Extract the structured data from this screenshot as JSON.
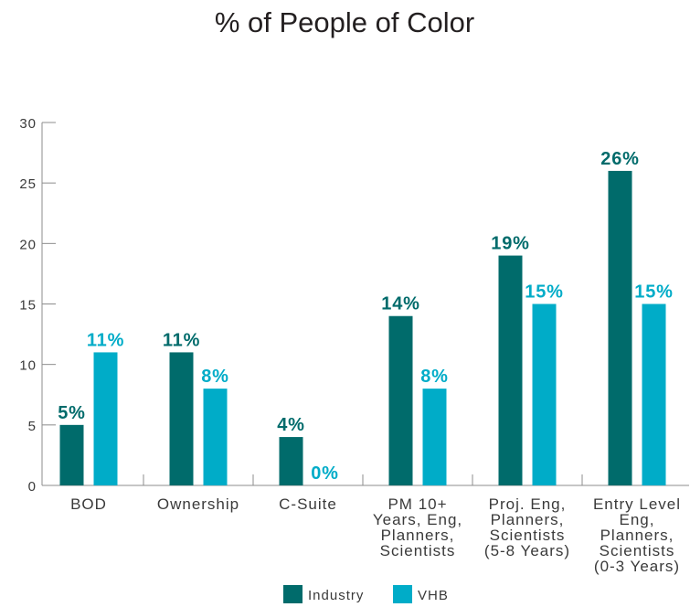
{
  "chart_data": {
    "type": "bar",
    "title": "% of People of Color",
    "categories": [
      [
        "BOD"
      ],
      [
        "Ownership"
      ],
      [
        "C-Suite"
      ],
      [
        "PM 10+",
        "Years, Eng,",
        "Planners,",
        "Scientists"
      ],
      [
        "Proj. Eng,",
        "Planners,",
        "Scientists",
        "(5-8 Years)"
      ],
      [
        "Entry Level",
        "Eng,",
        "Planners,",
        "Scientists",
        "(0-3 Years)"
      ]
    ],
    "series": [
      {
        "name": "Industry",
        "values": [
          5,
          11,
          4,
          14,
          19,
          26
        ],
        "labels": [
          "5%",
          "11%",
          "4%",
          "14%",
          "19%",
          "26%"
        ],
        "color": "#006b6b"
      },
      {
        "name": "VHB",
        "values": [
          11,
          8,
          0,
          8,
          15,
          15
        ],
        "labels": [
          "11%",
          "8%",
          "0%",
          "8%",
          "15%",
          "15%"
        ],
        "color": "#00acc8"
      }
    ],
    "ylim": [
      0,
      30
    ],
    "yticks": [
      0,
      5,
      10,
      15,
      20,
      25,
      30
    ],
    "legend": "bottom-center",
    "grid": false
  }
}
